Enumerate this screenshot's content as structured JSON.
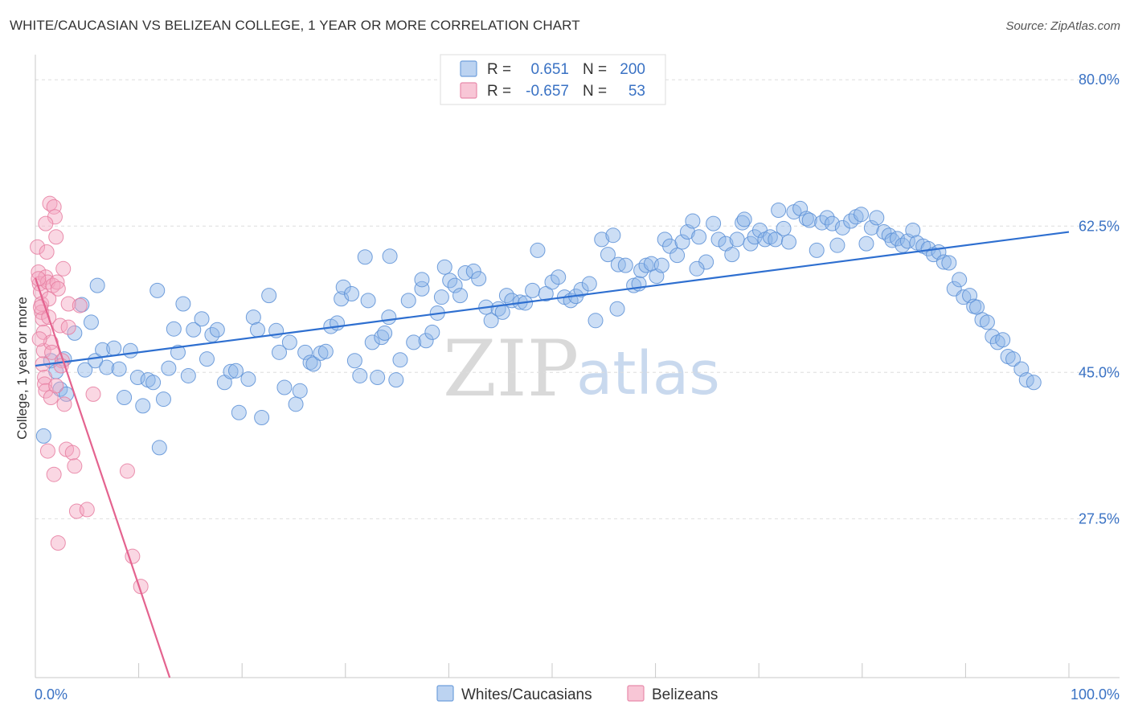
{
  "header": {
    "title": "WHITE/CAUCASIAN VS BELIZEAN COLLEGE, 1 YEAR OR MORE CORRELATION CHART",
    "source": "Source: ZipAtlas.com"
  },
  "legend": {
    "rows": [
      {
        "r_label": "R =",
        "r_value": "0.651",
        "n_label": "N =",
        "n_value": "200",
        "color": "#8fb6e8"
      },
      {
        "r_label": "R =",
        "r_value": "-0.657",
        "n_label": "N =",
        "n_value": "53",
        "color": "#f3a7c0"
      }
    ]
  },
  "watermark": {
    "zip": "ZIP",
    "atlas": "atlas"
  },
  "chart_data": {
    "type": "scatter",
    "title": "WHITE/CAUCASIAN VS BELIZEAN COLLEGE, 1 YEAR OR MORE CORRELATION CHART",
    "xlabel": "",
    "ylabel": "College, 1 year or more",
    "xlim": [
      0,
      100
    ],
    "ylim": [
      8.5,
      83
    ],
    "x_tick_labels": [
      "0.0%",
      "100.0%"
    ],
    "y_ticks": [
      80,
      62.5,
      45,
      27.5
    ],
    "y_tick_labels": [
      "80.0%",
      "62.5%",
      "45.0%",
      "27.5%"
    ],
    "legend_placement": "top-center",
    "series": [
      {
        "name": "Whites/Caucasians",
        "color": "#8fb6e8",
        "edge": "#5a8fd6",
        "trend": {
          "x": [
            0,
            100
          ],
          "y": [
            45.8,
            61.8
          ],
          "color": "#2e6fd0"
        },
        "points": [
          [
            0.8,
            37.4
          ],
          [
            1.5,
            46.4
          ],
          [
            2.0,
            45.1
          ],
          [
            2.4,
            43.0
          ],
          [
            3.0,
            42.4
          ],
          [
            2.8,
            46.6
          ],
          [
            3.8,
            49.7
          ],
          [
            4.8,
            45.3
          ],
          [
            4.5,
            53.1
          ],
          [
            5.4,
            51.0
          ],
          [
            5.8,
            46.4
          ],
          [
            6.5,
            47.7
          ],
          [
            6.9,
            45.6
          ],
          [
            7.6,
            47.9
          ],
          [
            8.1,
            45.4
          ],
          [
            8.6,
            42.0
          ],
          [
            9.2,
            47.6
          ],
          [
            9.9,
            44.4
          ],
          [
            10.4,
            41.0
          ],
          [
            10.9,
            44.1
          ],
          [
            11.4,
            43.8
          ],
          [
            11.8,
            54.8
          ],
          [
            12.4,
            41.8
          ],
          [
            12.9,
            45.5
          ],
          [
            13.4,
            50.2
          ],
          [
            13.8,
            47.4
          ],
          [
            14.3,
            53.2
          ],
          [
            14.8,
            44.6
          ],
          [
            15.3,
            50.1
          ],
          [
            16.1,
            51.4
          ],
          [
            16.6,
            46.6
          ],
          [
            17.1,
            49.5
          ],
          [
            17.6,
            50.1
          ],
          [
            18.3,
            43.8
          ],
          [
            18.9,
            45.1
          ],
          [
            19.4,
            45.2
          ],
          [
            19.7,
            40.2
          ],
          [
            20.6,
            44.2
          ],
          [
            21.1,
            51.6
          ],
          [
            21.5,
            50.1
          ],
          [
            21.9,
            39.6
          ],
          [
            22.6,
            54.2
          ],
          [
            23.3,
            50.0
          ],
          [
            23.6,
            47.4
          ],
          [
            24.1,
            43.2
          ],
          [
            24.6,
            48.6
          ],
          [
            25.2,
            41.2
          ],
          [
            25.6,
            42.8
          ],
          [
            26.1,
            47.4
          ],
          [
            26.6,
            46.2
          ],
          [
            26.9,
            46.0
          ],
          [
            27.6,
            47.3
          ],
          [
            28.1,
            47.5
          ],
          [
            28.6,
            50.5
          ],
          [
            29.2,
            50.9
          ],
          [
            29.6,
            53.8
          ],
          [
            29.8,
            55.2
          ],
          [
            30.6,
            54.4
          ],
          [
            30.9,
            46.4
          ],
          [
            31.4,
            44.6
          ],
          [
            31.9,
            58.8
          ],
          [
            32.2,
            53.6
          ],
          [
            32.6,
            48.6
          ],
          [
            33.1,
            44.4
          ],
          [
            33.5,
            49.2
          ],
          [
            33.8,
            49.7
          ],
          [
            34.2,
            51.6
          ],
          [
            34.9,
            44.1
          ],
          [
            35.3,
            46.5
          ],
          [
            36.1,
            53.6
          ],
          [
            36.6,
            48.6
          ],
          [
            37.4,
            55.0
          ],
          [
            37.8,
            48.8
          ],
          [
            38.4,
            49.8
          ],
          [
            38.9,
            52.1
          ],
          [
            39.3,
            54.0
          ],
          [
            39.6,
            57.6
          ],
          [
            40.1,
            56.0
          ],
          [
            40.6,
            55.4
          ],
          [
            41.1,
            54.2
          ],
          [
            41.6,
            56.9
          ],
          [
            42.4,
            57.1
          ],
          [
            42.9,
            56.2
          ],
          [
            43.6,
            52.8
          ],
          [
            44.1,
            51.2
          ],
          [
            44.8,
            52.6
          ],
          [
            45.2,
            52.2
          ],
          [
            45.6,
            54.2
          ],
          [
            46.1,
            53.6
          ],
          [
            46.9,
            53.4
          ],
          [
            47.4,
            53.3
          ],
          [
            48.1,
            54.8
          ],
          [
            48.6,
            59.6
          ],
          [
            49.4,
            54.4
          ],
          [
            50.0,
            55.8
          ],
          [
            50.6,
            56.4
          ],
          [
            51.2,
            54.0
          ],
          [
            51.8,
            53.6
          ],
          [
            52.3,
            54.1
          ],
          [
            52.8,
            54.9
          ],
          [
            53.6,
            55.6
          ],
          [
            54.2,
            51.2
          ],
          [
            54.8,
            60.9
          ],
          [
            55.4,
            59.1
          ],
          [
            55.9,
            61.4
          ],
          [
            56.4,
            57.9
          ],
          [
            57.1,
            57.8
          ],
          [
            57.9,
            55.4
          ],
          [
            58.4,
            55.6
          ],
          [
            58.6,
            57.2
          ],
          [
            59.1,
            57.8
          ],
          [
            59.6,
            58.0
          ],
          [
            60.1,
            56.5
          ],
          [
            60.6,
            57.8
          ],
          [
            60.9,
            60.9
          ],
          [
            61.4,
            60.1
          ],
          [
            62.1,
            59.0
          ],
          [
            62.6,
            60.6
          ],
          [
            63.1,
            61.8
          ],
          [
            63.6,
            63.1
          ],
          [
            64.2,
            61.2
          ],
          [
            64.9,
            58.2
          ],
          [
            65.6,
            62.8
          ],
          [
            66.1,
            60.9
          ],
          [
            66.8,
            60.4
          ],
          [
            67.4,
            59.1
          ],
          [
            67.9,
            60.9
          ],
          [
            68.4,
            62.9
          ],
          [
            68.6,
            63.3
          ],
          [
            69.2,
            60.4
          ],
          [
            69.6,
            61.2
          ],
          [
            70.1,
            62.0
          ],
          [
            70.6,
            60.9
          ],
          [
            71.1,
            61.2
          ],
          [
            71.6,
            60.9
          ],
          [
            72.4,
            62.2
          ],
          [
            72.9,
            60.6
          ],
          [
            73.4,
            64.2
          ],
          [
            74.0,
            64.6
          ],
          [
            74.6,
            63.4
          ],
          [
            74.9,
            63.2
          ],
          [
            75.6,
            59.6
          ],
          [
            76.1,
            62.9
          ],
          [
            76.6,
            63.5
          ],
          [
            77.1,
            62.8
          ],
          [
            77.6,
            60.2
          ],
          [
            78.1,
            62.3
          ],
          [
            78.9,
            63.1
          ],
          [
            79.4,
            63.6
          ],
          [
            79.9,
            63.9
          ],
          [
            80.4,
            60.4
          ],
          [
            80.9,
            62.3
          ],
          [
            81.4,
            63.5
          ],
          [
            82.1,
            61.8
          ],
          [
            82.6,
            61.4
          ],
          [
            82.9,
            60.8
          ],
          [
            83.4,
            61.0
          ],
          [
            83.9,
            60.2
          ],
          [
            84.4,
            60.7
          ],
          [
            84.9,
            62.0
          ],
          [
            85.3,
            60.5
          ],
          [
            85.9,
            60.1
          ],
          [
            86.4,
            59.8
          ],
          [
            86.9,
            59.1
          ],
          [
            87.4,
            59.4
          ],
          [
            87.9,
            58.2
          ],
          [
            88.4,
            58.1
          ],
          [
            88.9,
            55.0
          ],
          [
            89.4,
            56.1
          ],
          [
            89.8,
            54.0
          ],
          [
            90.4,
            54.2
          ],
          [
            90.8,
            52.9
          ],
          [
            91.1,
            52.8
          ],
          [
            91.6,
            51.3
          ],
          [
            92.1,
            51.0
          ],
          [
            92.6,
            49.3
          ],
          [
            93.1,
            48.6
          ],
          [
            93.6,
            48.9
          ],
          [
            94.1,
            46.9
          ],
          [
            94.6,
            46.6
          ],
          [
            95.4,
            45.4
          ],
          [
            95.9,
            44.1
          ],
          [
            96.6,
            43.8
          ],
          [
            34.3,
            58.9
          ],
          [
            12.0,
            36.0
          ],
          [
            6.0,
            55.4
          ],
          [
            64.0,
            57.4
          ],
          [
            71.9,
            64.4
          ],
          [
            37.4,
            56.1
          ],
          [
            56.3,
            52.6
          ]
        ]
      },
      {
        "name": "Belizeans",
        "color": "#f3a7c0",
        "edge": "#e67ca0",
        "trend": {
          "x": [
            0,
            13.0
          ],
          "y": [
            56.3,
            8.5
          ],
          "color": "#e4638f"
        },
        "points": [
          [
            0.2,
            60.0
          ],
          [
            0.3,
            57.0
          ],
          [
            0.4,
            55.6
          ],
          [
            0.5,
            54.6
          ],
          [
            0.6,
            53.2
          ],
          [
            0.6,
            52.2
          ],
          [
            0.7,
            51.4
          ],
          [
            0.8,
            49.8
          ],
          [
            0.8,
            47.6
          ],
          [
            0.9,
            44.4
          ],
          [
            0.9,
            43.6
          ],
          [
            1.0,
            42.8
          ],
          [
            1.0,
            56.4
          ],
          [
            1.1,
            59.4
          ],
          [
            1.2,
            55.8
          ],
          [
            1.3,
            53.8
          ],
          [
            1.4,
            65.2
          ],
          [
            1.5,
            48.6
          ],
          [
            1.6,
            47.4
          ],
          [
            1.7,
            55.4
          ],
          [
            1.8,
            64.8
          ],
          [
            1.9,
            63.6
          ],
          [
            2.0,
            61.2
          ],
          [
            2.1,
            55.8
          ],
          [
            2.2,
            55.0
          ],
          [
            2.4,
            50.6
          ],
          [
            2.6,
            46.4
          ],
          [
            2.8,
            41.2
          ],
          [
            3.0,
            35.8
          ],
          [
            1.2,
            35.6
          ],
          [
            2.7,
            57.4
          ],
          [
            3.2,
            50.4
          ],
          [
            3.6,
            35.4
          ],
          [
            3.8,
            33.8
          ],
          [
            4.0,
            28.4
          ],
          [
            1.8,
            32.8
          ],
          [
            5.0,
            28.6
          ],
          [
            2.2,
            24.6
          ],
          [
            3.2,
            53.2
          ],
          [
            4.3,
            53.0
          ],
          [
            5.6,
            42.4
          ],
          [
            8.9,
            33.2
          ],
          [
            9.4,
            23.0
          ],
          [
            10.2,
            19.4
          ],
          [
            0.3,
            56.2
          ],
          [
            0.5,
            52.8
          ],
          [
            0.7,
            46.0
          ],
          [
            1.5,
            42.0
          ],
          [
            2.0,
            43.4
          ],
          [
            2.5,
            45.8
          ],
          [
            1.0,
            62.8
          ],
          [
            0.4,
            49.0
          ],
          [
            1.3,
            51.6
          ]
        ]
      }
    ]
  }
}
